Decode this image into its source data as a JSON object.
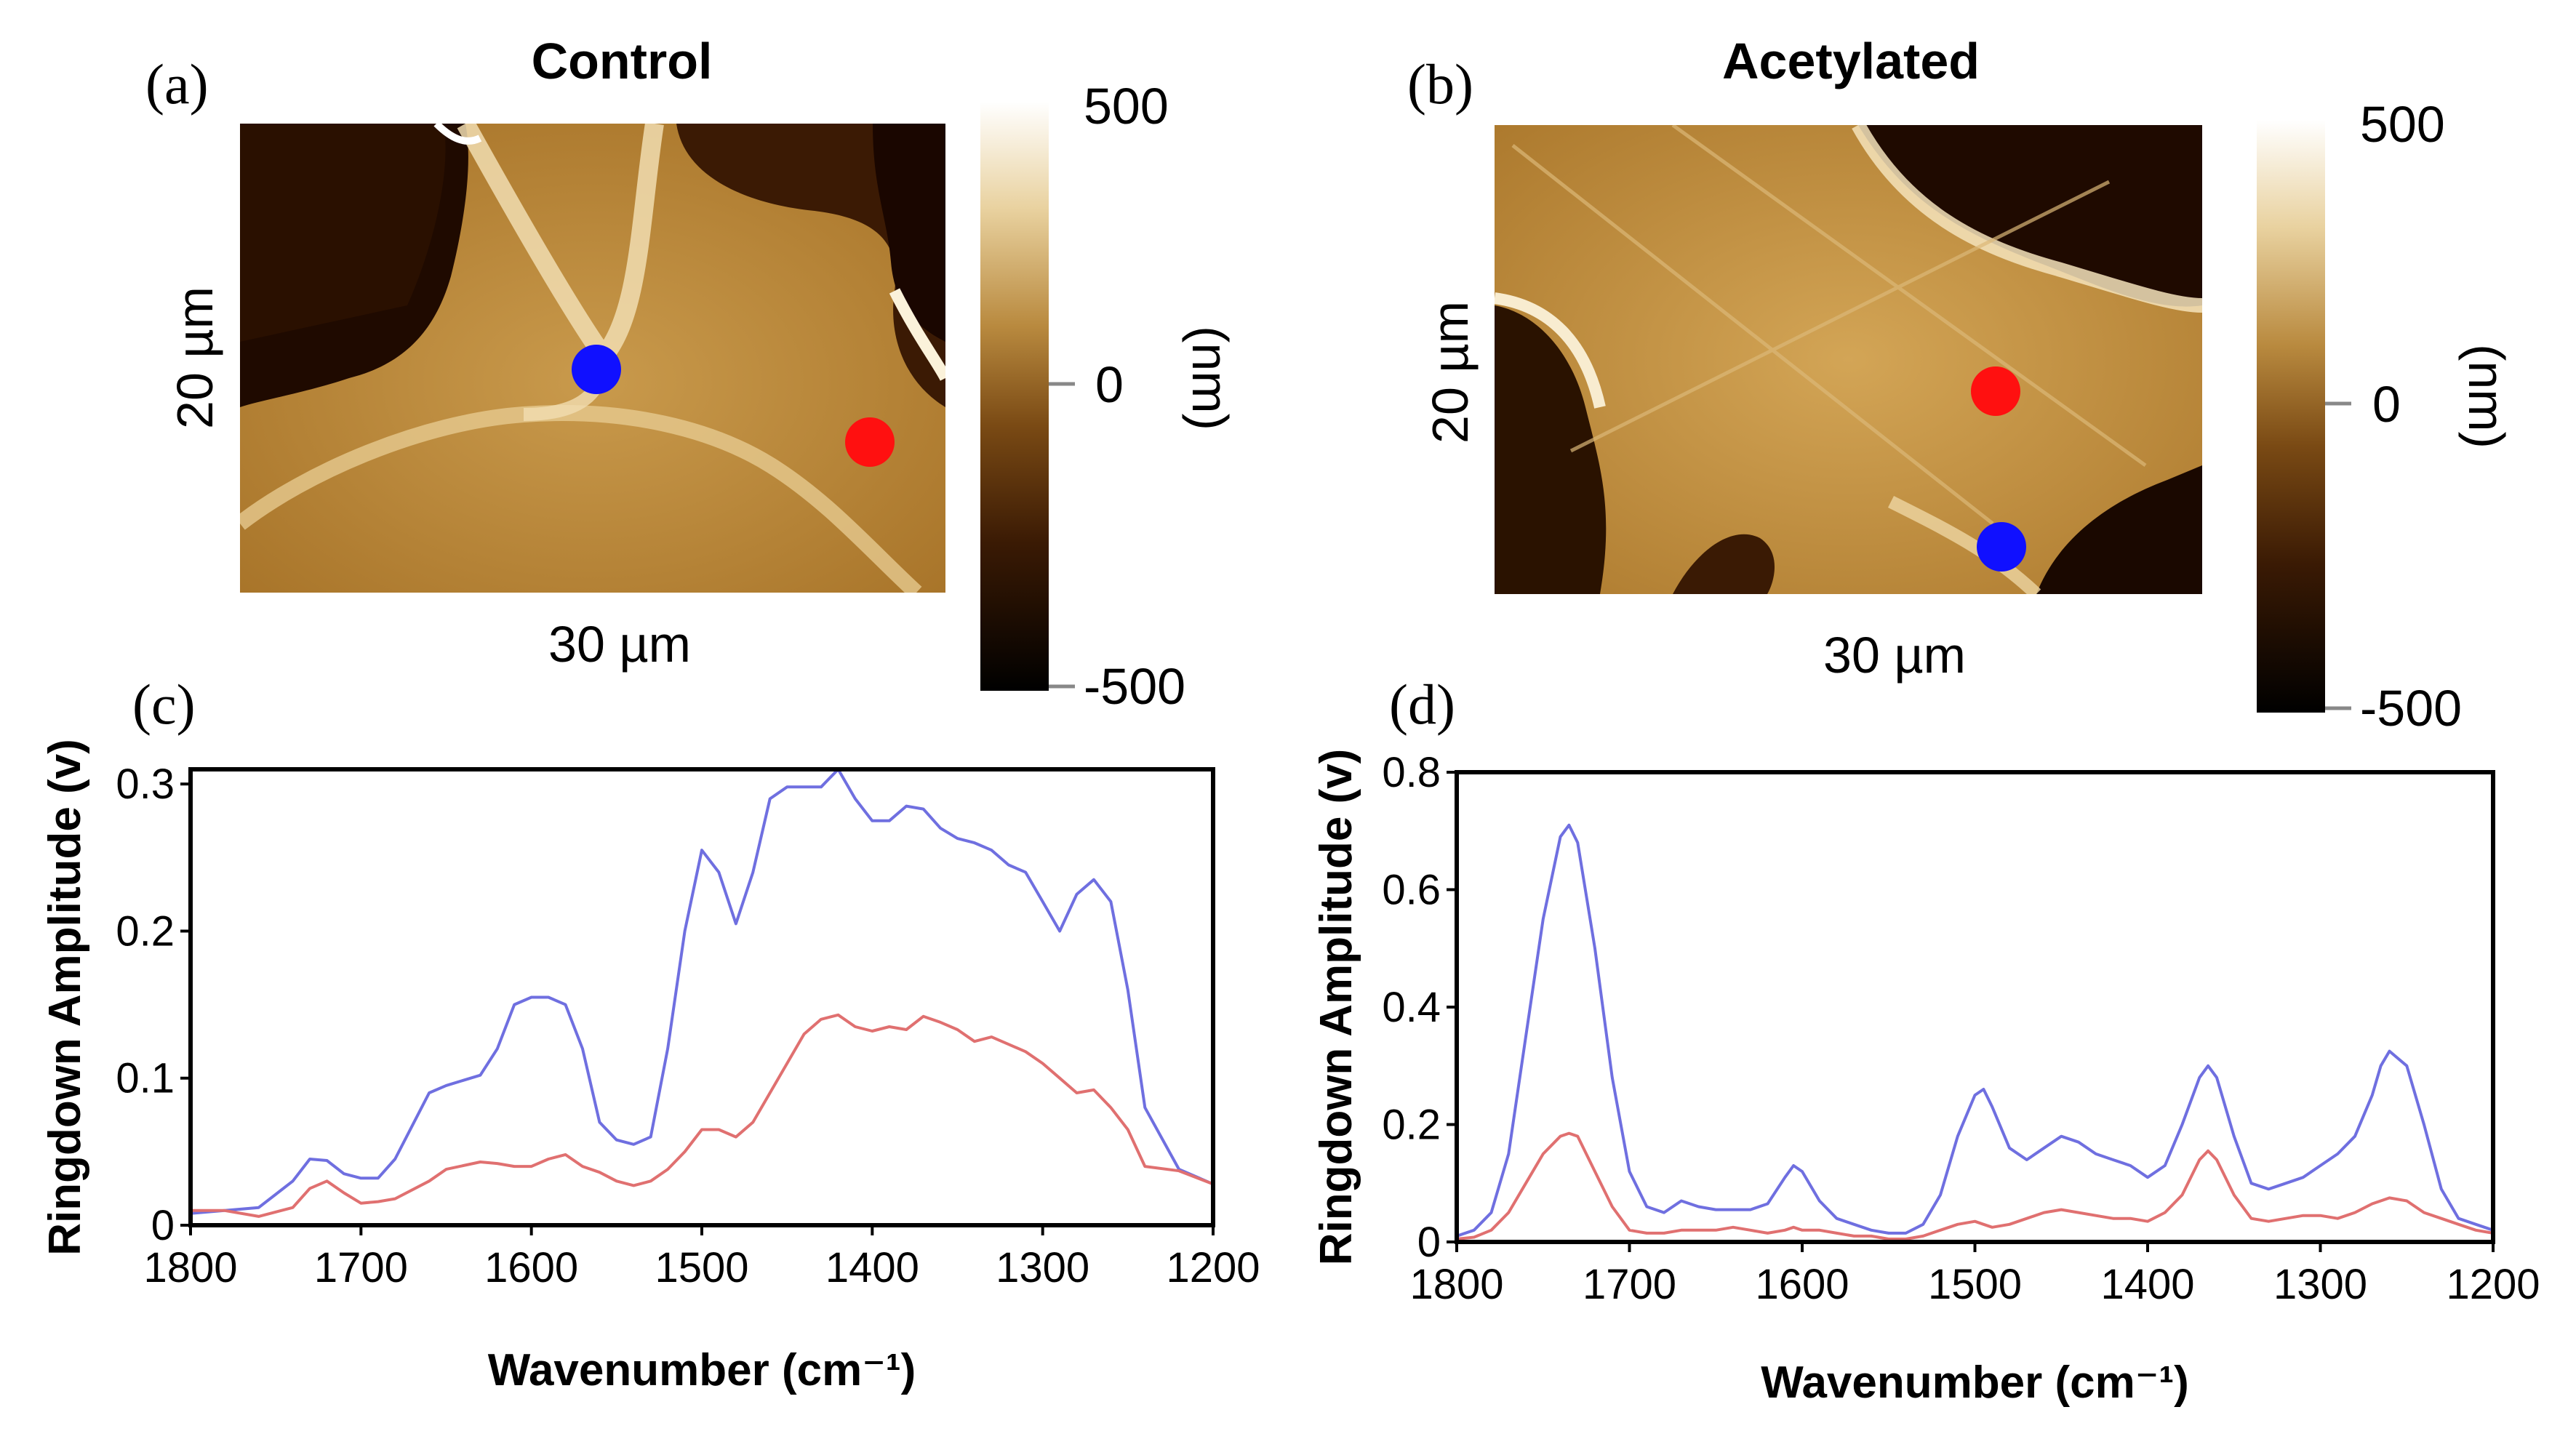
{
  "panels": {
    "a": {
      "letter": "(a)",
      "title": "Control",
      "scale_y": "20 µm",
      "scale_x": "30 µm",
      "colorbar": {
        "max": "500",
        "mid": "0",
        "min": "-500",
        "unit": "(nm)"
      }
    },
    "b": {
      "letter": "(b)",
      "title": "Acetylated",
      "scale_y": "20 µm",
      "scale_x": "30 µm",
      "colorbar": {
        "max": "500",
        "mid": "0",
        "min": "-500",
        "unit": "(nm)"
      }
    },
    "c": {
      "letter": "(c)"
    },
    "d": {
      "letter": "(d)"
    }
  },
  "colors": {
    "blue_series": "#6f6fe0",
    "red_series": "#e07070",
    "blue_marker": "#1010ff",
    "red_marker": "#ff1010",
    "map_light": "#f3e4b8",
    "map_mid": "#b07b2a",
    "map_dark": "#1c0800"
  },
  "chart_data": [
    {
      "id": "c",
      "type": "line",
      "title": "",
      "xlabel": "Wavenumber (cm⁻¹)",
      "ylabel": "Ringdown Amplitude (v)",
      "xlim": [
        1800,
        1200
      ],
      "ylim": [
        0,
        0.31
      ],
      "xticks": [
        1800,
        1700,
        1600,
        1500,
        1400,
        1300,
        1200
      ],
      "yticks": [
        0,
        0.1,
        0.2,
        0.3
      ],
      "ytick_labels": [
        "0",
        "0.1",
        "0.2",
        "0.3"
      ],
      "x": [
        1800,
        1780,
        1760,
        1740,
        1730,
        1720,
        1710,
        1700,
        1690,
        1680,
        1660,
        1650,
        1630,
        1620,
        1610,
        1600,
        1590,
        1580,
        1570,
        1560,
        1550,
        1540,
        1530,
        1520,
        1510,
        1500,
        1490,
        1480,
        1470,
        1460,
        1450,
        1440,
        1430,
        1420,
        1410,
        1400,
        1390,
        1380,
        1370,
        1360,
        1350,
        1340,
        1330,
        1320,
        1310,
        1300,
        1290,
        1280,
        1270,
        1260,
        1250,
        1240,
        1220,
        1200
      ],
      "series": [
        {
          "name": "blue",
          "color_key": "blue_series",
          "values": [
            0.008,
            0.01,
            0.012,
            0.03,
            0.045,
            0.044,
            0.035,
            0.032,
            0.032,
            0.045,
            0.09,
            0.095,
            0.102,
            0.12,
            0.15,
            0.155,
            0.155,
            0.15,
            0.12,
            0.07,
            0.058,
            0.055,
            0.06,
            0.12,
            0.2,
            0.255,
            0.24,
            0.205,
            0.24,
            0.29,
            0.298,
            0.298,
            0.298,
            0.31,
            0.29,
            0.275,
            0.275,
            0.285,
            0.283,
            0.27,
            0.263,
            0.26,
            0.255,
            0.245,
            0.24,
            0.22,
            0.2,
            0.225,
            0.235,
            0.22,
            0.16,
            0.08,
            0.038,
            0.028
          ]
        },
        {
          "name": "red",
          "color_key": "red_series",
          "values": [
            0.01,
            0.01,
            0.006,
            0.012,
            0.025,
            0.03,
            0.022,
            0.015,
            0.016,
            0.018,
            0.03,
            0.038,
            0.043,
            0.042,
            0.04,
            0.04,
            0.045,
            0.048,
            0.04,
            0.036,
            0.03,
            0.027,
            0.03,
            0.038,
            0.05,
            0.065,
            0.065,
            0.06,
            0.07,
            0.09,
            0.11,
            0.13,
            0.14,
            0.143,
            0.135,
            0.132,
            0.135,
            0.133,
            0.142,
            0.138,
            0.133,
            0.125,
            0.128,
            0.123,
            0.118,
            0.11,
            0.1,
            0.09,
            0.092,
            0.08,
            0.065,
            0.04,
            0.037,
            0.028
          ]
        }
      ]
    },
    {
      "id": "d",
      "type": "line",
      "title": "",
      "xlabel": "Wavenumber (cm⁻¹)",
      "ylabel": "Ringdown Amplitude (v)",
      "xlim": [
        1800,
        1200
      ],
      "ylim": [
        0,
        0.8
      ],
      "xticks": [
        1800,
        1700,
        1600,
        1500,
        1400,
        1300,
        1200
      ],
      "yticks": [
        0,
        0.2,
        0.4,
        0.6,
        0.8
      ],
      "ytick_labels": [
        "0",
        "0.2",
        "0.4",
        "0.6",
        "0.8"
      ],
      "x": [
        1800,
        1790,
        1780,
        1770,
        1760,
        1750,
        1740,
        1735,
        1730,
        1720,
        1710,
        1700,
        1690,
        1680,
        1670,
        1660,
        1650,
        1640,
        1630,
        1620,
        1610,
        1605,
        1600,
        1590,
        1580,
        1570,
        1560,
        1550,
        1540,
        1530,
        1520,
        1510,
        1500,
        1495,
        1490,
        1480,
        1470,
        1460,
        1450,
        1440,
        1430,
        1420,
        1410,
        1400,
        1390,
        1380,
        1370,
        1365,
        1360,
        1350,
        1340,
        1330,
        1320,
        1310,
        1300,
        1290,
        1280,
        1270,
        1265,
        1260,
        1250,
        1240,
        1230,
        1220,
        1210,
        1200
      ],
      "series": [
        {
          "name": "blue",
          "color_key": "blue_series",
          "values": [
            0.01,
            0.02,
            0.05,
            0.15,
            0.35,
            0.55,
            0.69,
            0.71,
            0.68,
            0.5,
            0.28,
            0.12,
            0.06,
            0.05,
            0.07,
            0.06,
            0.055,
            0.055,
            0.055,
            0.065,
            0.11,
            0.13,
            0.12,
            0.07,
            0.04,
            0.03,
            0.02,
            0.015,
            0.015,
            0.03,
            0.08,
            0.18,
            0.25,
            0.26,
            0.23,
            0.16,
            0.14,
            0.16,
            0.18,
            0.17,
            0.15,
            0.14,
            0.13,
            0.11,
            0.13,
            0.2,
            0.28,
            0.3,
            0.28,
            0.18,
            0.1,
            0.09,
            0.1,
            0.11,
            0.13,
            0.15,
            0.18,
            0.25,
            0.3,
            0.325,
            0.3,
            0.2,
            0.09,
            0.04,
            0.03,
            0.02
          ]
        },
        {
          "name": "red",
          "color_key": "red_series",
          "values": [
            0.005,
            0.008,
            0.02,
            0.05,
            0.1,
            0.15,
            0.18,
            0.185,
            0.18,
            0.12,
            0.06,
            0.02,
            0.015,
            0.015,
            0.02,
            0.02,
            0.02,
            0.025,
            0.02,
            0.015,
            0.02,
            0.025,
            0.02,
            0.02,
            0.015,
            0.01,
            0.01,
            0.005,
            0.005,
            0.01,
            0.02,
            0.03,
            0.035,
            0.03,
            0.025,
            0.03,
            0.04,
            0.05,
            0.055,
            0.05,
            0.045,
            0.04,
            0.04,
            0.035,
            0.05,
            0.08,
            0.14,
            0.155,
            0.14,
            0.08,
            0.04,
            0.035,
            0.04,
            0.045,
            0.045,
            0.04,
            0.05,
            0.065,
            0.07,
            0.075,
            0.07,
            0.05,
            0.04,
            0.03,
            0.02,
            0.015
          ]
        }
      ]
    }
  ]
}
